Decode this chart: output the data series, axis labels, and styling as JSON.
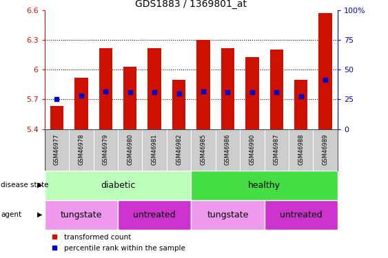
{
  "title": "GDS1883 / 1369801_at",
  "samples": [
    "GSM46977",
    "GSM46978",
    "GSM46979",
    "GSM46980",
    "GSM46981",
    "GSM46982",
    "GSM46985",
    "GSM46986",
    "GSM46990",
    "GSM46987",
    "GSM46988",
    "GSM46989"
  ],
  "bar_values": [
    5.63,
    5.92,
    6.22,
    6.03,
    6.22,
    5.9,
    6.3,
    6.22,
    6.13,
    6.2,
    5.9,
    6.57
  ],
  "blue_dot_values": [
    5.7,
    5.74,
    5.78,
    5.77,
    5.77,
    5.76,
    5.78,
    5.77,
    5.77,
    5.77,
    5.73,
    5.9
  ],
  "ylim_min": 5.4,
  "ylim_max": 6.6,
  "yticks": [
    5.4,
    5.7,
    6.0,
    6.3,
    6.6
  ],
  "ytick_labels": [
    "5.4",
    "5.7",
    "6",
    "6.3",
    "6.6"
  ],
  "right_yticks_pct": [
    0,
    25,
    50,
    75,
    100
  ],
  "right_ytick_labels": [
    "0",
    "25",
    "50",
    "75",
    "100%"
  ],
  "bar_color": "#cc1100",
  "dot_color": "#0000cc",
  "base_value": 5.4,
  "disease_states": [
    {
      "label": "diabetic",
      "start": 0,
      "end": 6,
      "color": "#bbffbb"
    },
    {
      "label": "healthy",
      "start": 6,
      "end": 12,
      "color": "#44dd44"
    }
  ],
  "agents": [
    {
      "label": "tungstate",
      "start": 0,
      "end": 3,
      "color": "#ee99ee"
    },
    {
      "label": "untreated",
      "start": 3,
      "end": 6,
      "color": "#cc33cc"
    },
    {
      "label": "tungstate",
      "start": 6,
      "end": 9,
      "color": "#ee99ee"
    },
    {
      "label": "untreated",
      "start": 9,
      "end": 12,
      "color": "#cc33cc"
    }
  ],
  "legend_red_label": "transformed count",
  "legend_blue_label": "percentile rank within the sample",
  "bar_color_legend": "#cc1100",
  "dot_color_legend": "#0000cc",
  "left_axis_color": "#cc1100",
  "right_axis_color": "#0000cc",
  "sample_bg": "#cccccc",
  "fig_bg": "#ffffff",
  "bar_width": 0.55,
  "dot_size": 4
}
